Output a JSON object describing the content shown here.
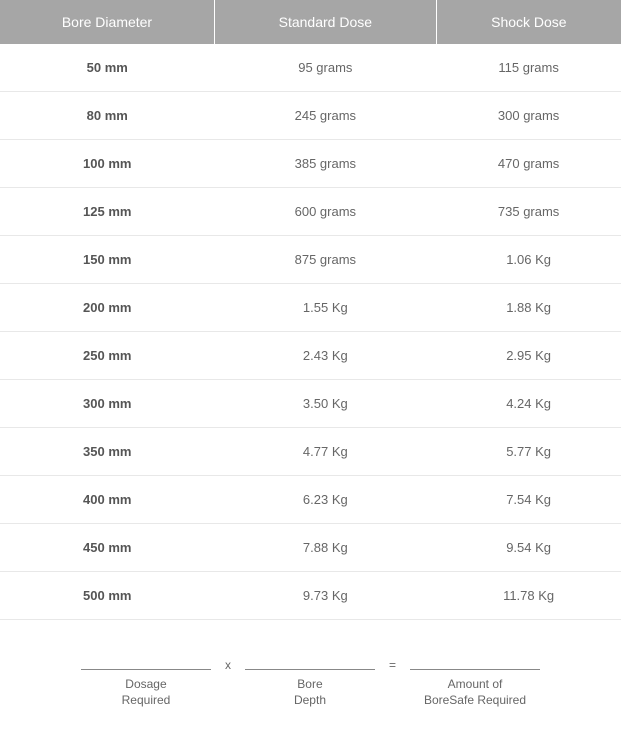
{
  "table": {
    "headers": [
      "Bore Diameter",
      "Standard Dose",
      "Shock Dose"
    ],
    "rows": [
      {
        "bore": "50 mm",
        "std": "95 grams",
        "shock": "115 grams"
      },
      {
        "bore": "80 mm",
        "std": "245 grams",
        "shock": "300 grams"
      },
      {
        "bore": "100 mm",
        "std": "385 grams",
        "shock": "470 grams"
      },
      {
        "bore": "125 mm",
        "std": "600 grams",
        "shock": "735 grams"
      },
      {
        "bore": "150 mm",
        "std": "875 grams",
        "shock": "1.06 Kg"
      },
      {
        "bore": "200 mm",
        "std": "1.55 Kg",
        "shock": "1.88 Kg"
      },
      {
        "bore": "250 mm",
        "std": "2.43 Kg",
        "shock": "2.95 Kg"
      },
      {
        "bore": "300 mm",
        "std": "3.50 Kg",
        "shock": "4.24 Kg"
      },
      {
        "bore": "350 mm",
        "std": "4.77 Kg",
        "shock": "5.77 Kg"
      },
      {
        "bore": "400 mm",
        "std": "6.23 Kg",
        "shock": "7.54 Kg"
      },
      {
        "bore": "450 mm",
        "std": "7.88 Kg",
        "shock": "9.54 Kg"
      },
      {
        "bore": "500 mm",
        "std": "9.73 Kg",
        "shock": "11.78 Kg"
      }
    ]
  },
  "formula": {
    "op1": "x",
    "op2": "=",
    "slot1_line1": "Dosage",
    "slot1_line2": "Required",
    "slot2_line1": "Bore",
    "slot2_line2": "Depth",
    "slot3_line1": "Amount of",
    "slot3_line2": "BoreSafe Required"
  },
  "styles": {
    "header_bg": "#a6a6a6",
    "header_text": "#ffffff",
    "cell_text": "#666666",
    "row_border": "#e8e8e8",
    "body_bg": "#ffffff",
    "header_fontsize": 14,
    "cell_fontsize": 13,
    "formula_fontsize": 12
  }
}
